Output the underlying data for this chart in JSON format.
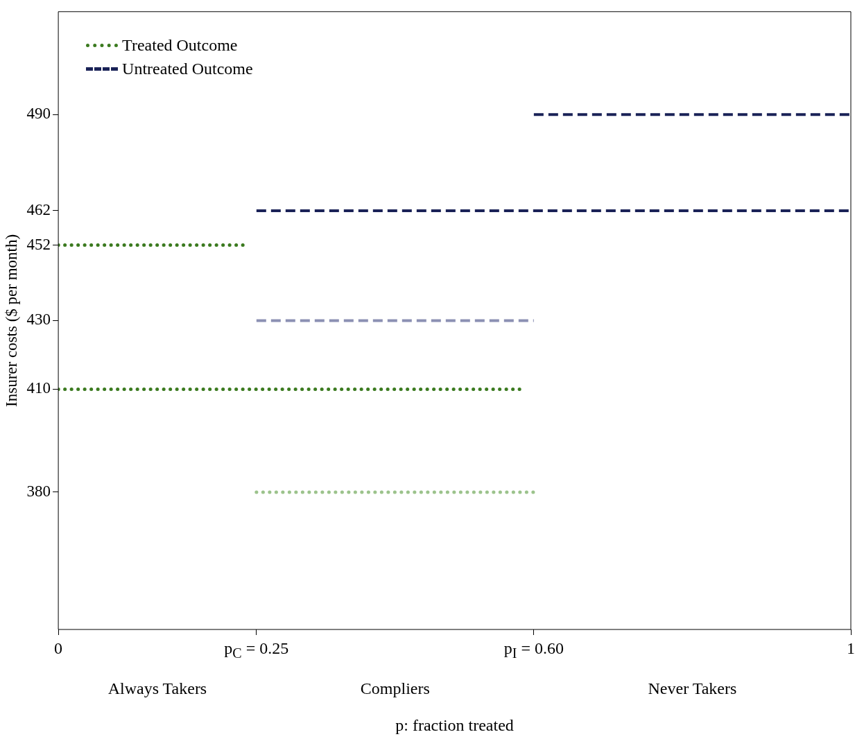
{
  "chart_data": {
    "type": "line",
    "xlabel": "p: fraction treated",
    "ylabel": "Insurer costs ($ per month)",
    "xlim": [
      0,
      1
    ],
    "xticks": [
      0,
      {
        "value": 0.25,
        "label": "p$_{C}$ = 0.25"
      },
      {
        "value": 0.6,
        "label": "p$_{I}$ = 0.60"
      },
      1
    ],
    "ylim": [
      340,
      520
    ],
    "yticks": [
      380,
      410,
      430,
      452,
      462,
      490
    ],
    "grid": false,
    "legend": "top left",
    "marker": "none",
    "annotations": [
      "Always Takers",
      "Compliers",
      "Never Takers"
    ],
    "series": [
      {
        "name": "Treated Outcome",
        "color": "#3b7a1f",
        "line_style": "dotted",
        "x": [
          0,
          0.24
        ],
        "values": [
          452,
          452
        ]
      },
      {
        "name": "Untreated Outcome",
        "color": "#1a2257",
        "line_style": "dashed",
        "x": [
          0.25,
          1
        ],
        "values": [
          462,
          462
        ]
      },
      {
        "color": "#3b7a1f",
        "line_style": "dotted",
        "x": [
          0,
          0.59
        ],
        "values": [
          410,
          410
        ]
      },
      {
        "color": "#9cc38c",
        "line_style": "dotted",
        "x": [
          0.25,
          0.6
        ],
        "values": [
          380,
          380
        ]
      },
      {
        "color": "#1a2257",
        "line_style": "dashed",
        "x": [
          0.6,
          1
        ],
        "values": [
          490,
          490
        ]
      },
      {
        "color": "#8b90b3",
        "line_style": "dashed",
        "x": [
          0.25,
          0.6
        ],
        "values": [
          430,
          430
        ]
      }
    ]
  }
}
